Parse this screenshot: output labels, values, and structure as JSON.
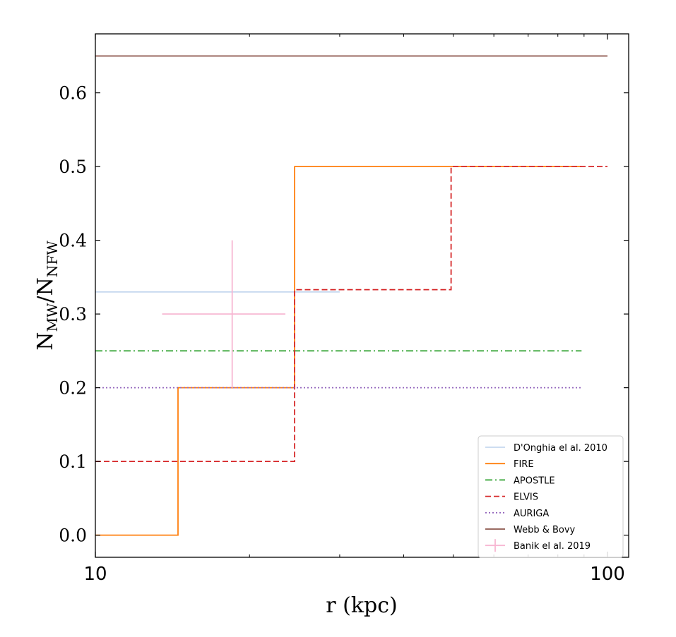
{
  "chart_data": {
    "type": "line",
    "xscale": "log",
    "xlim": [
      10,
      110
    ],
    "ylim": [
      -0.03,
      0.68
    ],
    "xticks": [
      {
        "value": 10,
        "label": "10"
      },
      {
        "value": 100,
        "label": "100"
      }
    ],
    "xminor": [
      20,
      30,
      40,
      50,
      60,
      70,
      80,
      90
    ],
    "yticks": [
      {
        "value": 0.0,
        "label": "0.0"
      },
      {
        "value": 0.1,
        "label": "0.1"
      },
      {
        "value": 0.2,
        "label": "0.2"
      },
      {
        "value": 0.3,
        "label": "0.3"
      },
      {
        "value": 0.4,
        "label": "0.4"
      },
      {
        "value": 0.5,
        "label": "0.5"
      },
      {
        "value": 0.6,
        "label": "0.6"
      }
    ],
    "xlabel": "r (kpc)",
    "ylabel": {
      "base": "N",
      "num_sub": "MW",
      "den_sub": "NFW"
    },
    "grid": false,
    "legend_position": "lower-right",
    "series": [
      {
        "name": "D'Onghia el al. 2010",
        "kind": "line",
        "color": "#aec7e8",
        "dash": "solid",
        "opacity": 0.7,
        "points": [
          [
            10,
            0.33
          ],
          [
            30,
            0.33
          ]
        ]
      },
      {
        "name": "FIRE",
        "kind": "line",
        "color": "#ff7f0e",
        "dash": "solid",
        "opacity": 1,
        "points": [
          [
            10,
            0.0
          ],
          [
            14.5,
            0.0
          ],
          [
            14.5,
            0.2
          ],
          [
            24.5,
            0.2
          ],
          [
            24.5,
            0.5
          ],
          [
            89,
            0.5
          ]
        ]
      },
      {
        "name": "APOSTLE",
        "kind": "line",
        "color": "#2ca02c",
        "dash": "dashdot",
        "opacity": 1,
        "points": [
          [
            10,
            0.25
          ],
          [
            89,
            0.25
          ]
        ]
      },
      {
        "name": "ELVIS",
        "kind": "line",
        "color": "#d62728",
        "dash": "dashed",
        "opacity": 1,
        "points": [
          [
            10,
            0.1
          ],
          [
            24.5,
            0.1
          ],
          [
            24.5,
            0.333
          ],
          [
            49.5,
            0.333
          ],
          [
            49.5,
            0.5
          ],
          [
            100,
            0.5
          ]
        ]
      },
      {
        "name": "AURIGA",
        "kind": "line",
        "color": "#9467bd",
        "dash": "dotted",
        "opacity": 1,
        "points": [
          [
            10,
            0.2
          ],
          [
            89,
            0.2
          ]
        ]
      },
      {
        "name": "Webb & Bovy",
        "kind": "line",
        "color": "#8c564b",
        "dash": "solid",
        "opacity": 1,
        "points": [
          [
            10,
            0.65
          ],
          [
            100,
            0.65
          ]
        ]
      },
      {
        "name": "Banik el al. 2019",
        "kind": "errorbar",
        "color": "#f7b6d2",
        "dash": "solid",
        "opacity": 1,
        "x": 18.5,
        "y": 0.3,
        "xerr": [
          13.5,
          23.5
        ],
        "yerr": [
          0.2,
          0.4
        ]
      }
    ]
  }
}
